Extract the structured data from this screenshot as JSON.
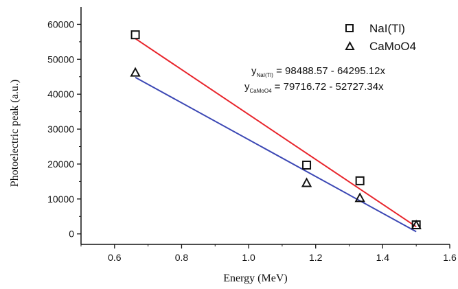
{
  "chart_data": {
    "type": "scatter",
    "title": "",
    "xlabel": "Energy (MeV)",
    "ylabel": "Photoelectric peak (a.u.)",
    "xlim": [
      0.5,
      1.6
    ],
    "ylim": [
      -3000,
      65000
    ],
    "x_ticks": [
      "0.6",
      "0.8",
      "1.0",
      "1.2",
      "1.4",
      "1.6"
    ],
    "x_tick_values": [
      0.6,
      0.8,
      1.0,
      1.2,
      1.4,
      1.6
    ],
    "y_ticks": [
      "0",
      "10000",
      "20000",
      "30000",
      "40000",
      "50000",
      "60000"
    ],
    "y_tick_values": [
      0,
      10000,
      20000,
      30000,
      40000,
      50000,
      60000
    ],
    "grid": false,
    "legend_position": "top-right",
    "series": [
      {
        "name": "NaI(Tl)",
        "marker": "square",
        "color": "#111111",
        "x": [
          0.662,
          1.173,
          1.332,
          1.5
        ],
        "y": [
          57000,
          19700,
          15200,
          2600
        ]
      },
      {
        "name": "CaMoO4",
        "marker": "triangle",
        "color": "#111111",
        "x": [
          0.662,
          1.173,
          1.332,
          1.5
        ],
        "y": [
          46200,
          14600,
          10300,
          2500
        ]
      }
    ],
    "fits": [
      {
        "label_main": "y",
        "label_sub": "NaI(Tl)",
        "equation": " = 98488.57 - 64295.12x",
        "intercept": 98488.57,
        "slope": -64295.12,
        "x_range": [
          0.662,
          1.5
        ],
        "color": "#e8242b"
      },
      {
        "label_main": "y",
        "label_sub": "CaMoO4",
        "equation": " = 79716.72 - 52727.34x",
        "intercept": 79716.72,
        "slope": -52727.34,
        "x_range": [
          0.662,
          1.5
        ],
        "color": "#3b47b4"
      }
    ]
  }
}
